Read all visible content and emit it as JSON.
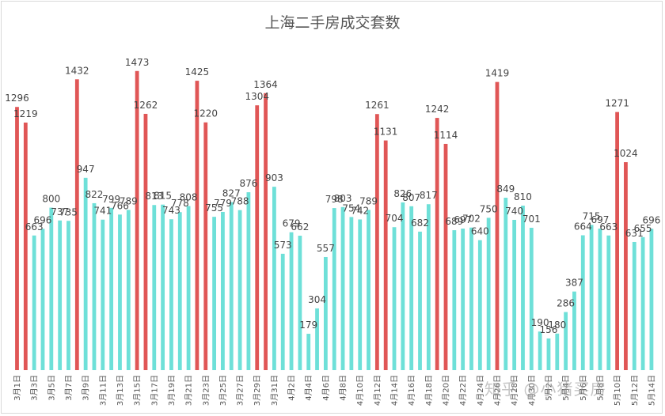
{
  "chart_data": {
    "type": "bar",
    "title": "上海二手房成交套数",
    "xlabel": "",
    "ylabel": "",
    "ylim": [
      0,
      1550
    ],
    "grid": false,
    "legend": "none",
    "colors": {
      "high": "#e05656",
      "normal": "#6ee0d8"
    },
    "categories": [
      "3月1日",
      "3月2日",
      "3月3日",
      "3月4日",
      "3月5日",
      "3月6日",
      "3月7日",
      "3月8日",
      "3月9日",
      "3月10日",
      "3月11日",
      "3月12日",
      "3月13日",
      "3月14日",
      "3月15日",
      "3月16日",
      "3月17日",
      "3月18日",
      "3月19日",
      "3月20日",
      "3月21日",
      "3月22日",
      "3月23日",
      "3月24日",
      "3月25日",
      "3月26日",
      "3月27日",
      "3月28日",
      "3月29日",
      "3月30日",
      "3月31日",
      "4月1日",
      "4月2日",
      "4月3日",
      "4月4日",
      "4月5日",
      "4月6日",
      "4月7日",
      "4月8日",
      "4月9日",
      "4月10日",
      "4月11日",
      "4月12日",
      "4月13日",
      "4月14日",
      "4月15日",
      "4月16日",
      "4月17日",
      "4月18日",
      "4月19日",
      "4月20日",
      "4月21日",
      "4月22日",
      "4月23日",
      "4月24日",
      "4月25日",
      "4月26日",
      "4月27日",
      "4月28日",
      "4月29日",
      "4月30日",
      "5月1日",
      "5月2日",
      "5月3日",
      "5月4日",
      "5月5日",
      "5月6日",
      "5月7日",
      "5月8日",
      "5月9日",
      "5月10日",
      "5月11日",
      "5月12日",
      "5月13日",
      "5月14日"
    ],
    "values": [
      1296,
      1219,
      663,
      696,
      800,
      737,
      735,
      1432,
      947,
      822,
      741,
      799,
      766,
      789,
      1473,
      1262,
      813,
      815,
      743,
      778,
      808,
      1425,
      1220,
      755,
      779,
      827,
      788,
      876,
      1304,
      1364,
      903,
      573,
      679,
      662,
      179,
      304,
      557,
      798,
      803,
      754,
      742,
      789,
      1261,
      1131,
      704,
      826,
      807,
      682,
      817,
      1242,
      1114,
      689,
      697,
      702,
      640,
      750,
      1419,
      849,
      740,
      810,
      701,
      190,
      156,
      180,
      286,
      387,
      664,
      715,
      697,
      663,
      1271,
      1024,
      631,
      655,
      696
    ],
    "x_tick_labels": [
      "3月1日",
      "3月3日",
      "3月5日",
      "3月7日",
      "3月9日",
      "3月11日",
      "3月13日",
      "3月15日",
      "3月17日",
      "3月19日",
      "3月21日",
      "3月23日",
      "3月25日",
      "3月27日",
      "3月29日",
      "3月31日",
      "4月2日",
      "4月4日",
      "4月6日",
      "4月8日",
      "4月10日",
      "4月12日",
      "4月14日",
      "4月16日",
      "4月18日",
      "4月20日",
      "4月22日",
      "4月24日",
      "4月26日",
      "4月28日",
      "4月30日",
      "5月2日",
      "5月4日",
      "5月6日",
      "5月8日",
      "5月10日",
      "5月12日",
      "5月14日"
    ],
    "data_labels_visible": true
  },
  "watermark": "知乎 @小猪买房"
}
